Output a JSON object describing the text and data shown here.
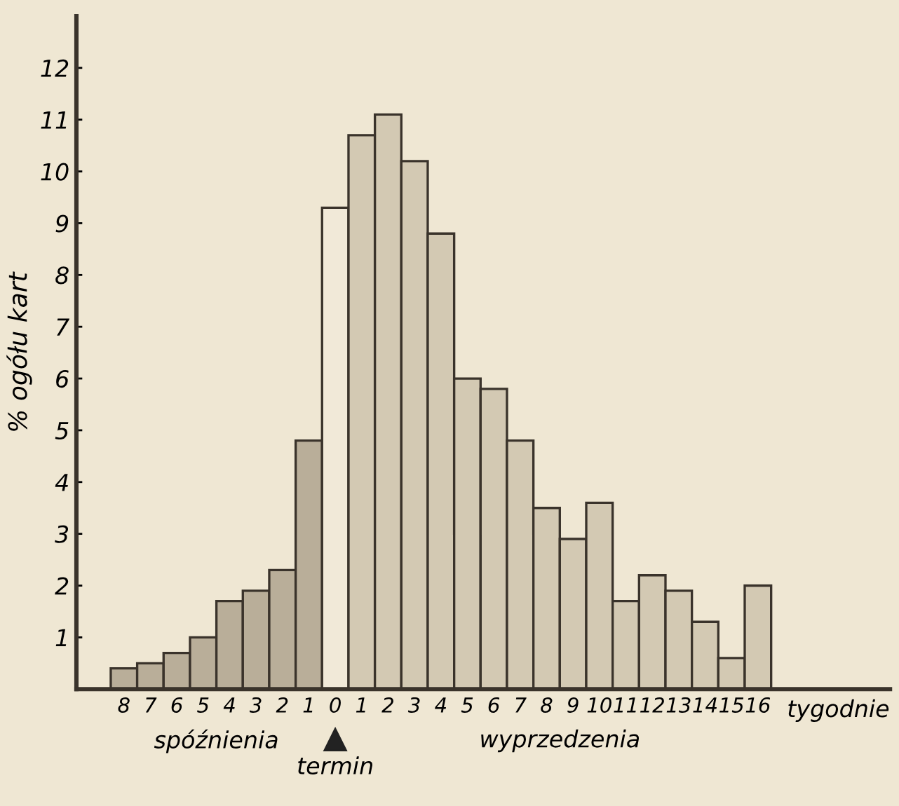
{
  "chart_data": {
    "type": "bar",
    "ylabel": "% ogółu kart",
    "xlabel": "tygodnie",
    "categories": [
      "8",
      "7",
      "6",
      "5",
      "4",
      "3",
      "2",
      "1",
      "0",
      "1",
      "2",
      "3",
      "4",
      "5",
      "6",
      "7",
      "8",
      "9",
      "10",
      "11",
      "12",
      "13",
      "14",
      "15",
      "16"
    ],
    "values": [
      0.4,
      0.5,
      0.7,
      1.0,
      1.7,
      1.9,
      2.3,
      4.8,
      9.3,
      10.7,
      11.1,
      10.2,
      8.8,
      6.0,
      5.8,
      4.8,
      3.5,
      2.9,
      3.6,
      1.7,
      2.2,
      1.9,
      1.3,
      0.6,
      2.0
    ],
    "colors": [
      "#b9ae99",
      "#b9ae99",
      "#b9ae99",
      "#b9ae99",
      "#b9ae99",
      "#b9ae99",
      "#b9ae99",
      "#b9ae99",
      "#f1e9d8",
      "#d3c9b3",
      "#d3c9b3",
      "#d3c9b3",
      "#d3c9b3",
      "#d3c9b3",
      "#d3c9b3",
      "#d3c9b3",
      "#d3c9b3",
      "#d3c9b3",
      "#d3c9b3",
      "#d3c9b3",
      "#d3c9b3",
      "#d3c9b3",
      "#d3c9b3",
      "#d3c9b3",
      "#d3c9b3"
    ],
    "ylim": [
      0,
      13
    ],
    "yticks": [
      1,
      2,
      3,
      4,
      5,
      6,
      7,
      8,
      9,
      10,
      11,
      12
    ],
    "annotations": [
      "spóźnienia",
      "termin",
      "wyprzedzenia"
    ],
    "grid": false,
    "legend": false
  }
}
